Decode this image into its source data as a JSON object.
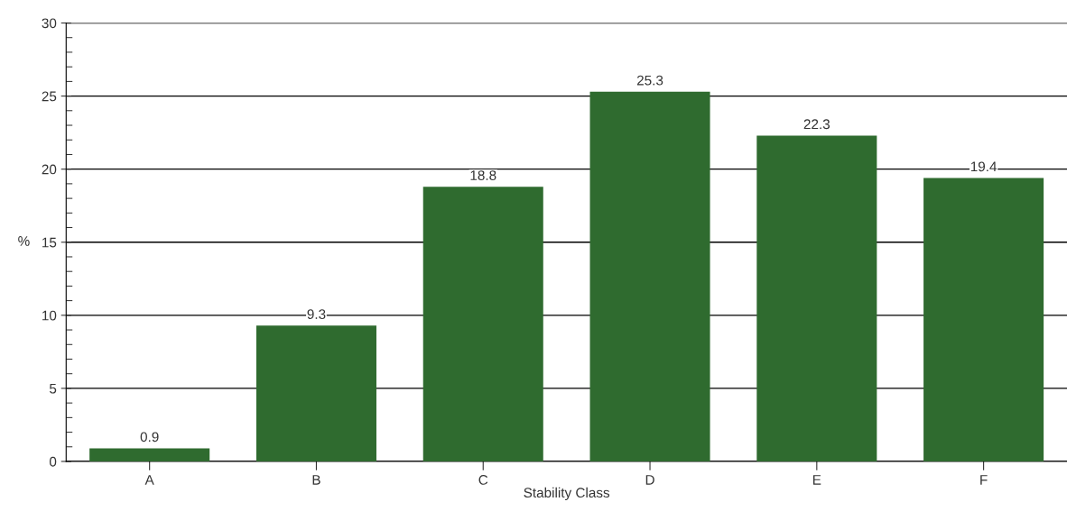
{
  "chart_data": {
    "type": "bar",
    "xlabel": "Stability Class",
    "ylabel": "%",
    "categories": [
      "A",
      "B",
      "C",
      "D",
      "E",
      "F"
    ],
    "values": [
      0.9,
      9.3,
      18.8,
      25.3,
      22.3,
      19.4
    ],
    "color": "#2f6b2f",
    "data_labels": true,
    "grid": "y",
    "ylim": [
      0,
      30
    ],
    "yticks": [
      0,
      5,
      10,
      15,
      20,
      25,
      30
    ]
  }
}
